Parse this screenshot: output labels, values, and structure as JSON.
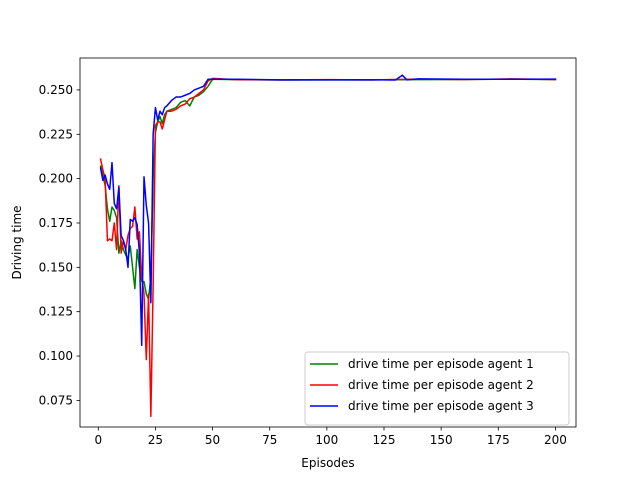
{
  "chart_data": {
    "type": "line",
    "title": "",
    "xlabel": "Episodes",
    "ylabel": "Driving time",
    "xlim": [
      -8,
      209
    ],
    "ylim": [
      0.06,
      0.268
    ],
    "xticks": [
      0,
      25,
      50,
      75,
      100,
      125,
      150,
      175,
      200
    ],
    "yticks": [
      0.075,
      0.1,
      0.125,
      0.15,
      0.175,
      0.2,
      0.225,
      0.25
    ],
    "ytick_labels": [
      "0.075",
      "0.100",
      "0.125",
      "0.150",
      "0.175",
      "0.200",
      "0.225",
      "0.250"
    ],
    "grid": false,
    "legend_position": "lower-right",
    "series": [
      {
        "name": "drive time per episode agent 1",
        "color": "#008000",
        "points": [
          [
            1,
            0.207
          ],
          [
            2,
            0.202
          ],
          [
            3,
            0.196
          ],
          [
            4,
            0.183
          ],
          [
            5,
            0.176
          ],
          [
            6,
            0.184
          ],
          [
            7,
            0.182
          ],
          [
            8,
            0.178
          ],
          [
            9,
            0.158
          ],
          [
            10,
            0.165
          ],
          [
            11,
            0.16
          ],
          [
            12,
            0.157
          ],
          [
            13,
            0.155
          ],
          [
            14,
            0.162
          ],
          [
            15,
            0.15
          ],
          [
            16,
            0.138
          ],
          [
            17,
            0.16
          ],
          [
            18,
            0.15
          ],
          [
            19,
            0.142
          ],
          [
            20,
            0.142
          ],
          [
            21,
            0.135
          ],
          [
            22,
            0.132
          ],
          [
            23,
            0.145
          ],
          [
            24,
            0.2
          ],
          [
            25,
            0.226
          ],
          [
            26,
            0.232
          ],
          [
            27,
            0.235
          ],
          [
            28,
            0.231
          ],
          [
            29,
            0.236
          ],
          [
            30,
            0.238
          ],
          [
            32,
            0.239
          ],
          [
            34,
            0.24
          ],
          [
            36,
            0.243
          ],
          [
            38,
            0.244
          ],
          [
            40,
            0.241
          ],
          [
            42,
            0.246
          ],
          [
            44,
            0.247
          ],
          [
            46,
            0.249
          ],
          [
            48,
            0.252
          ],
          [
            50,
            0.256
          ],
          [
            60,
            0.2558
          ],
          [
            80,
            0.2556
          ],
          [
            100,
            0.2557
          ],
          [
            120,
            0.2557
          ],
          [
            140,
            0.2558
          ],
          [
            160,
            0.2559
          ],
          [
            180,
            0.2561
          ],
          [
            200,
            0.2558
          ]
        ]
      },
      {
        "name": "drive time per episode agent 2",
        "color": "#ff0000",
        "points": [
          [
            1,
            0.211
          ],
          [
            2,
            0.205
          ],
          [
            3,
            0.2
          ],
          [
            4,
            0.165
          ],
          [
            5,
            0.166
          ],
          [
            6,
            0.165
          ],
          [
            7,
            0.175
          ],
          [
            8,
            0.16
          ],
          [
            9,
            0.196
          ],
          [
            10,
            0.158
          ],
          [
            11,
            0.165
          ],
          [
            12,
            0.16
          ],
          [
            13,
            0.168
          ],
          [
            14,
            0.172
          ],
          [
            15,
            0.173
          ],
          [
            16,
            0.184
          ],
          [
            17,
            0.166
          ],
          [
            18,
            0.17
          ],
          [
            19,
            0.145
          ],
          [
            20,
            0.135
          ],
          [
            21,
            0.098
          ],
          [
            22,
            0.135
          ],
          [
            23,
            0.066
          ],
          [
            24,
            0.14
          ],
          [
            25,
            0.23
          ],
          [
            26,
            0.232
          ],
          [
            27,
            0.232
          ],
          [
            28,
            0.228
          ],
          [
            29,
            0.233
          ],
          [
            30,
            0.238
          ],
          [
            32,
            0.238
          ],
          [
            34,
            0.239
          ],
          [
            36,
            0.241
          ],
          [
            38,
            0.242
          ],
          [
            40,
            0.245
          ],
          [
            42,
            0.246
          ],
          [
            44,
            0.248
          ],
          [
            46,
            0.25
          ],
          [
            48,
            0.255
          ],
          [
            50,
            0.2565
          ],
          [
            60,
            0.2558
          ],
          [
            80,
            0.2557
          ],
          [
            100,
            0.2558
          ],
          [
            120,
            0.2557
          ],
          [
            140,
            0.2561
          ],
          [
            160,
            0.2559
          ],
          [
            180,
            0.2562
          ],
          [
            200,
            0.2559
          ]
        ]
      },
      {
        "name": "drive time per episode agent 3",
        "color": "#0000ff",
        "points": [
          [
            1,
            0.206
          ],
          [
            2,
            0.199
          ],
          [
            3,
            0.202
          ],
          [
            4,
            0.197
          ],
          [
            5,
            0.194
          ],
          [
            6,
            0.209
          ],
          [
            7,
            0.186
          ],
          [
            8,
            0.183
          ],
          [
            9,
            0.195
          ],
          [
            10,
            0.168
          ],
          [
            11,
            0.165
          ],
          [
            12,
            0.16
          ],
          [
            13,
            0.15
          ],
          [
            14,
            0.177
          ],
          [
            15,
            0.176
          ],
          [
            16,
            0.178
          ],
          [
            17,
            0.174
          ],
          [
            18,
            0.158
          ],
          [
            19,
            0.106
          ],
          [
            20,
            0.201
          ],
          [
            21,
            0.185
          ],
          [
            22,
            0.175
          ],
          [
            23,
            0.13
          ],
          [
            24,
            0.225
          ],
          [
            25,
            0.24
          ],
          [
            26,
            0.233
          ],
          [
            27,
            0.238
          ],
          [
            28,
            0.236
          ],
          [
            29,
            0.24
          ],
          [
            30,
            0.241
          ],
          [
            32,
            0.244
          ],
          [
            34,
            0.246
          ],
          [
            36,
            0.246
          ],
          [
            38,
            0.247
          ],
          [
            40,
            0.248
          ],
          [
            42,
            0.25
          ],
          [
            44,
            0.251
          ],
          [
            46,
            0.252
          ],
          [
            48,
            0.256
          ],
          [
            50,
            0.256
          ],
          [
            60,
            0.256
          ],
          [
            80,
            0.2557
          ],
          [
            100,
            0.2557
          ],
          [
            120,
            0.2557
          ],
          [
            130,
            0.2556
          ],
          [
            133,
            0.2583
          ],
          [
            135,
            0.2557
          ],
          [
            140,
            0.2562
          ],
          [
            160,
            0.256
          ],
          [
            180,
            0.256
          ],
          [
            200,
            0.2561
          ]
        ]
      }
    ]
  }
}
